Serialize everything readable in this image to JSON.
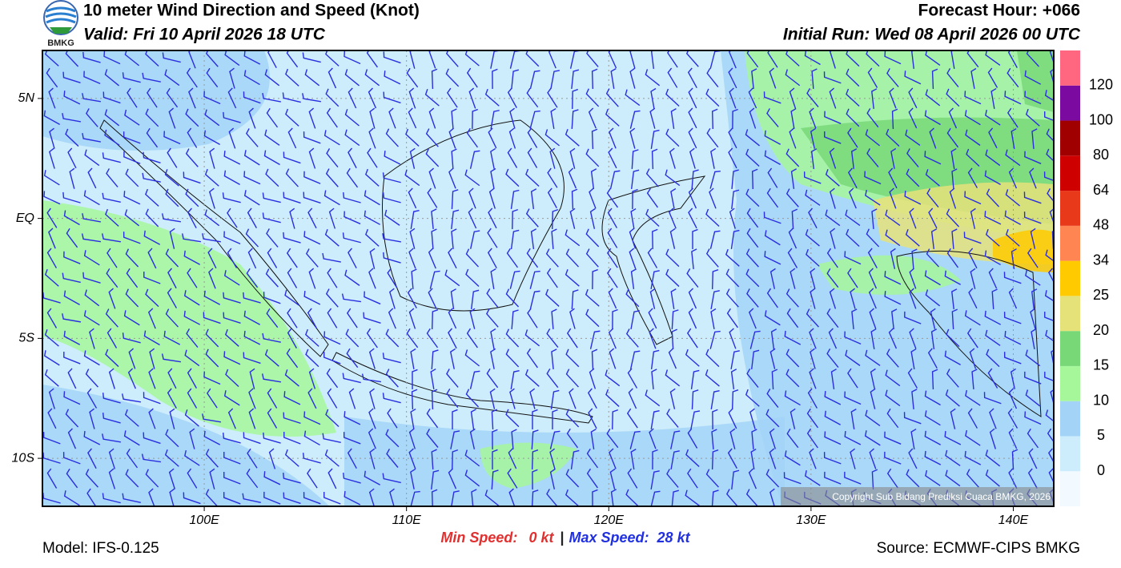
{
  "header": {
    "title": "10 meter Wind Direction and Speed (Knot)",
    "valid": "Valid: Fri 10 April 2026 18 UTC",
    "forecast_hour": "Forecast Hour: +066",
    "initial_run": "Initial Run: Wed 08 April 2026 00 UTC",
    "logo": "BMKG"
  },
  "map": {
    "xlim": [
      92,
      142
    ],
    "ylim": [
      -12,
      7
    ],
    "xticks": [
      {
        "value": 100,
        "label": "100E"
      },
      {
        "value": 110,
        "label": "110E"
      },
      {
        "value": 120,
        "label": "120E"
      },
      {
        "value": 130,
        "label": "130E"
      },
      {
        "value": 140,
        "label": "140E"
      }
    ],
    "yticks": [
      {
        "value": 5,
        "label": "5N"
      },
      {
        "value": 0,
        "label": "EQ"
      },
      {
        "value": -5,
        "label": "5S"
      },
      {
        "value": -10,
        "label": "10S"
      }
    ],
    "copyright": "Copyright Sub Bidang Prediksi Cuaca BMKG, 2026"
  },
  "legend": {
    "levels": [
      0,
      5,
      10,
      15,
      20,
      25,
      34,
      48,
      64,
      80,
      100,
      120
    ],
    "colors": [
      "#f2f9ff",
      "#cdedfc",
      "#a3d3f7",
      "#a6f79a",
      "#78d878",
      "#e6e27a",
      "#ffca00",
      "#ff8552",
      "#e8391a",
      "#cf0000",
      "#a00000",
      "#7a0aa0",
      "#ff6680"
    ]
  },
  "footer": {
    "min_label": "Min Speed:",
    "min_value": "0 kt",
    "separator": "|",
    "max_label": "Max Speed:",
    "max_value": "28 kt",
    "model": "Model: IFS-0.125",
    "source": "Source: ECMWF-CIPS BMKG"
  }
}
